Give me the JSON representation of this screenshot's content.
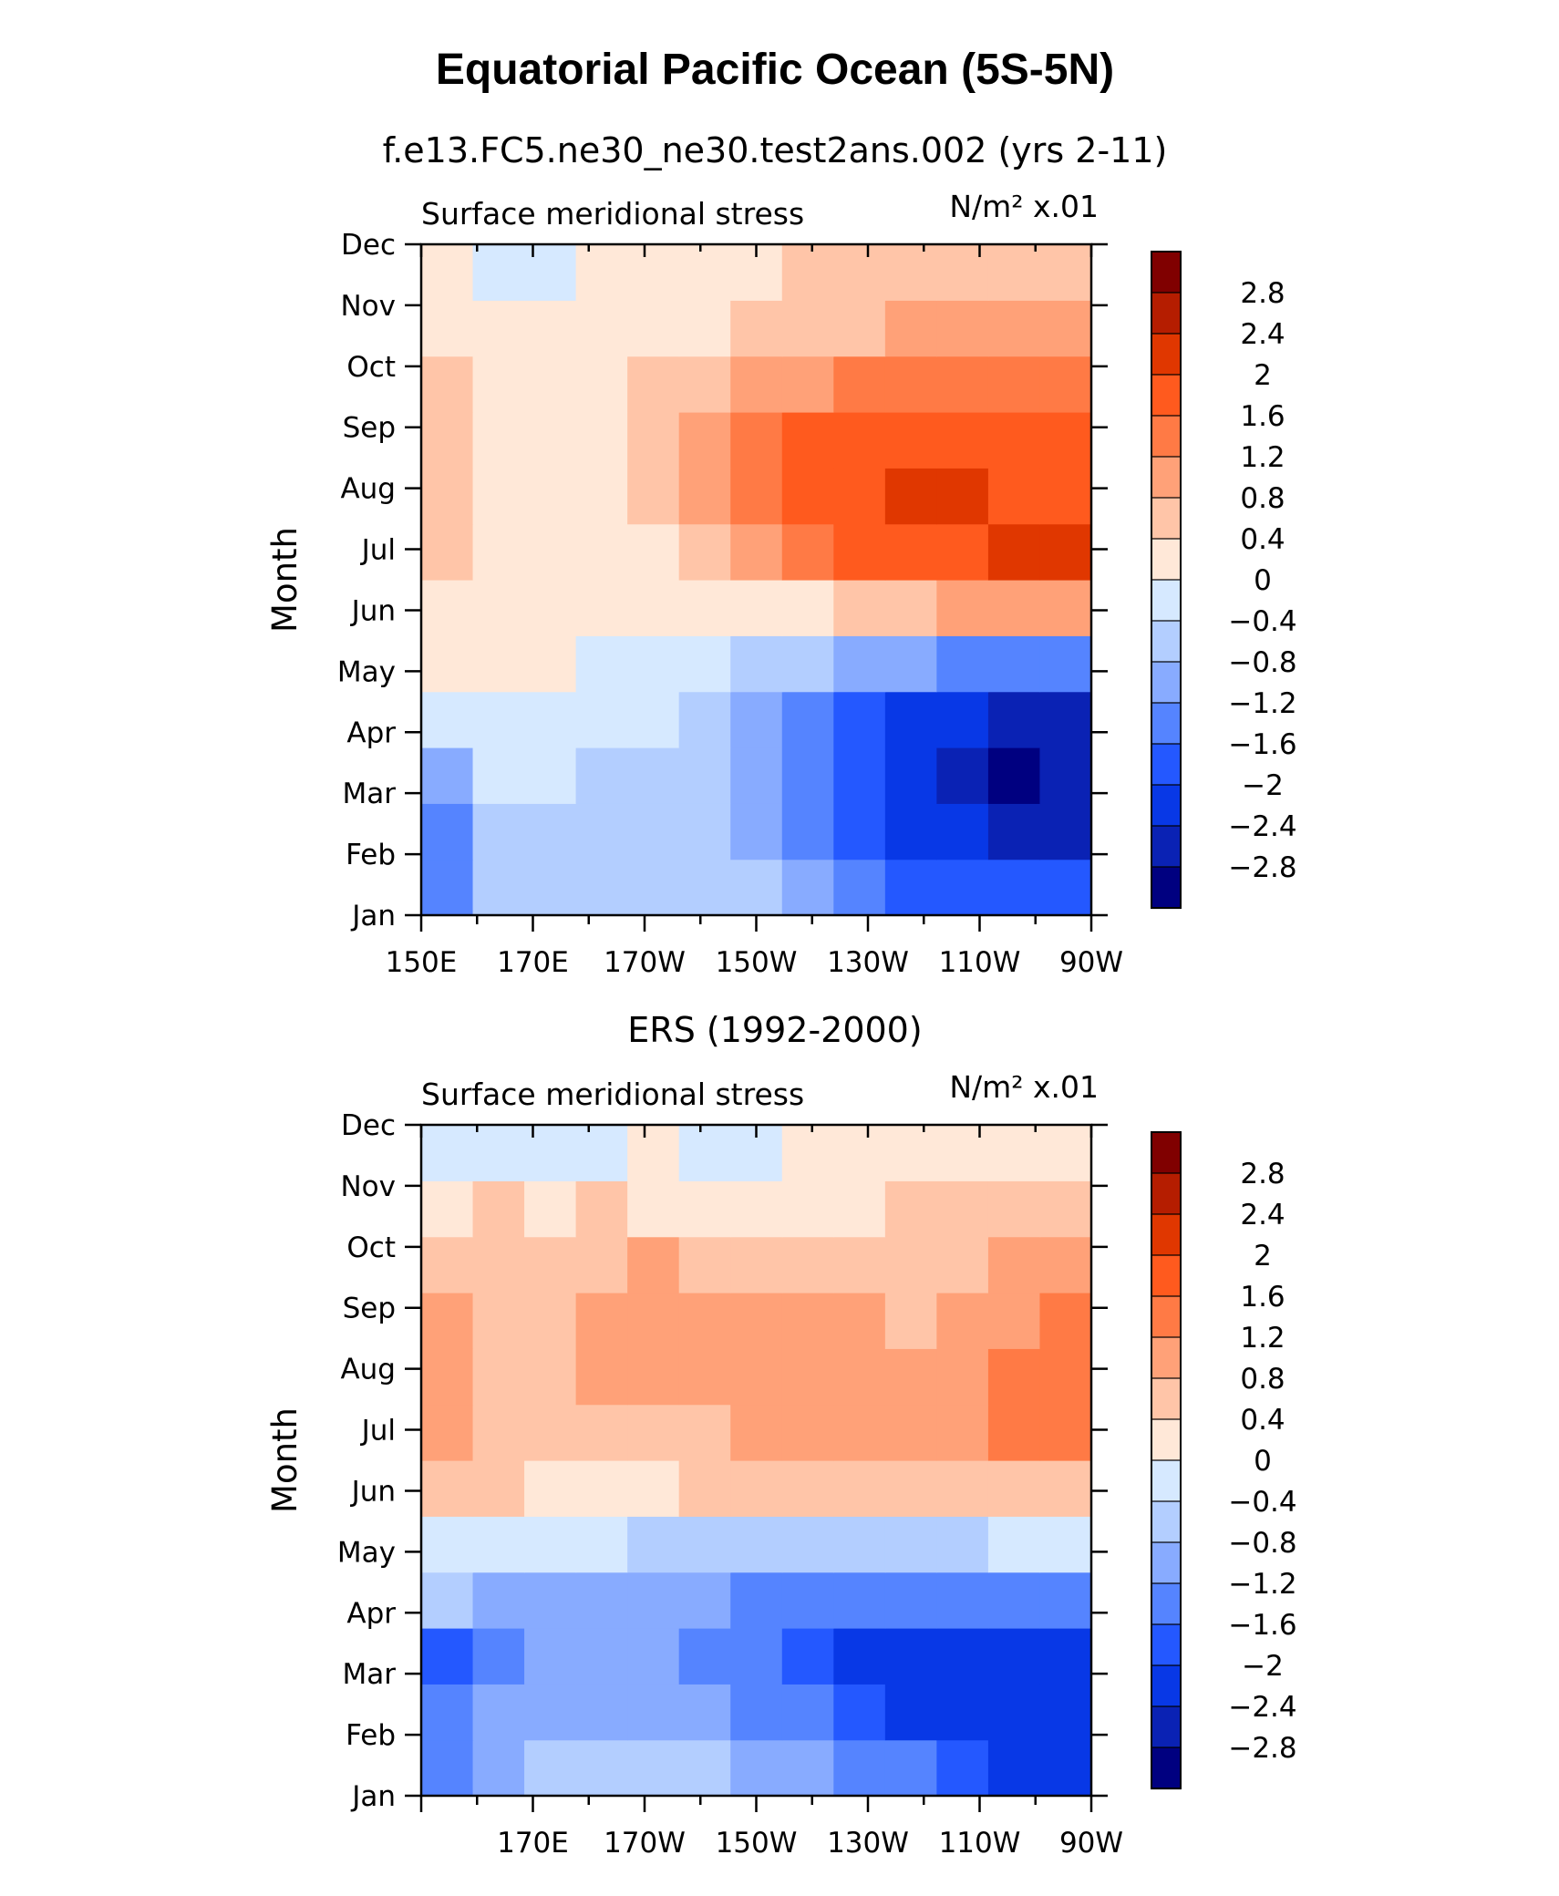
{
  "figure": {
    "title": "Equatorial Pacific Ocean (5S-5N)"
  },
  "chart_data": [
    {
      "type": "heatmap",
      "title": "f.e13.FC5.ne30_ne30.test2ans.002 (yrs 2-11)",
      "subtitle": "Surface meridional stress",
      "units": "N/m² x.01",
      "ylabel": "Month",
      "x_ticks": [
        "150E",
        "170E",
        "170W",
        "150W",
        "130W",
        "110W",
        "90W"
      ],
      "y_ticks": [
        "Jan",
        "Feb",
        "Mar",
        "Apr",
        "May",
        "Jun",
        "Jul",
        "Aug",
        "Sep",
        "Oct",
        "Nov",
        "Dec"
      ],
      "xlim": [
        "150E",
        "90W"
      ],
      "ylim": [
        "Jan",
        "Dec"
      ],
      "colorbar": {
        "levels": [
          2.8,
          2.4,
          2,
          1.6,
          1.2,
          0.8,
          0.4,
          0,
          -0.4,
          -0.8,
          -1.2,
          -1.6,
          -2,
          -2.4,
          -2.8
        ],
        "colors": [
          "#800000",
          "#b51d00",
          "#e03700",
          "#ff5a1e",
          "#ff7a45",
          "#ffa178",
          "#ffc5a8",
          "#ffe8d8",
          "#d6e9ff",
          "#b3ceff",
          "#88abff",
          "#5584ff",
          "#2458ff",
          "#0838e6",
          "#0a22b4",
          "#000080"
        ]
      },
      "months": [
        "Jan",
        "Feb",
        "Mar",
        "Apr",
        "May",
        "Jun",
        "Jul",
        "Aug",
        "Sep",
        "Oct",
        "Nov",
        "Dec"
      ],
      "longitudes": [
        "150E",
        "160E",
        "170E",
        "180",
        "170W",
        "160W",
        "150W",
        "140W",
        "130W",
        "120W",
        "110W",
        "100W",
        "90W"
      ],
      "values": [
        [
          -1.3,
          -0.5,
          -0.5,
          -0.6,
          -0.6,
          -0.6,
          -0.7,
          -1.0,
          -1.4,
          -1.7,
          -1.9,
          -2.0,
          -2.0
        ],
        [
          -1.4,
          -0.6,
          -0.5,
          -0.6,
          -0.6,
          -0.7,
          -0.9,
          -1.3,
          -1.8,
          -2.1,
          -2.4,
          -2.6,
          -2.7
        ],
        [
          -0.9,
          -0.4,
          -0.3,
          -0.5,
          -0.6,
          -0.8,
          -1.1,
          -1.6,
          -2.0,
          -2.4,
          -2.7,
          -2.9,
          -2.8
        ],
        [
          -0.3,
          -0.2,
          -0.2,
          -0.3,
          -0.4,
          -0.6,
          -0.9,
          -1.3,
          -1.7,
          -2.1,
          -2.4,
          -2.6,
          -2.6
        ],
        [
          0.1,
          0.1,
          0.0,
          -0.1,
          -0.2,
          -0.3,
          -0.5,
          -0.7,
          -0.9,
          -1.1,
          -1.3,
          -1.4,
          -1.4
        ],
        [
          0.3,
          0.2,
          0.1,
          0.1,
          0.0,
          0.0,
          0.1,
          0.3,
          0.5,
          0.7,
          0.9,
          1.0,
          1.0
        ],
        [
          0.5,
          0.3,
          0.2,
          0.2,
          0.3,
          0.5,
          0.8,
          1.2,
          1.6,
          1.8,
          1.9,
          2.0,
          2.1
        ],
        [
          0.6,
          0.3,
          0.2,
          0.3,
          0.5,
          0.9,
          1.3,
          1.7,
          1.9,
          2.1,
          2.0,
          1.9,
          1.8
        ],
        [
          0.6,
          0.3,
          0.2,
          0.3,
          0.5,
          0.8,
          1.2,
          1.6,
          1.7,
          1.8,
          1.7,
          1.7,
          1.6
        ],
        [
          0.4,
          0.2,
          0.1,
          0.2,
          0.4,
          0.6,
          0.8,
          1.0,
          1.2,
          1.3,
          1.4,
          1.4,
          1.3
        ],
        [
          0.1,
          0.1,
          0.1,
          0.1,
          0.2,
          0.3,
          0.4,
          0.5,
          0.6,
          0.8,
          0.9,
          1.0,
          1.0
        ],
        [
          0.0,
          -0.1,
          -0.1,
          0.0,
          0.1,
          0.2,
          0.3,
          0.4,
          0.5,
          0.5,
          0.6,
          0.6,
          0.6
        ]
      ]
    },
    {
      "type": "heatmap",
      "title": "ERS (1992-2000)",
      "subtitle": "Surface meridional stress",
      "units": "N/m² x.01",
      "ylabel": "Month",
      "x_ticks": [
        "170E",
        "170W",
        "150W",
        "130W",
        "110W",
        "90W"
      ],
      "y_ticks": [
        "Jan",
        "Feb",
        "Mar",
        "Apr",
        "May",
        "Jun",
        "Jul",
        "Aug",
        "Sep",
        "Oct",
        "Nov",
        "Dec"
      ],
      "xlim": [
        "150E",
        "90W"
      ],
      "ylim": [
        "Jan",
        "Dec"
      ],
      "colorbar": {
        "levels": [
          2.8,
          2.4,
          2,
          1.6,
          1.2,
          0.8,
          0.4,
          0,
          -0.4,
          -0.8,
          -1.2,
          -1.6,
          -2,
          -2.4,
          -2.8
        ],
        "colors": [
          "#800000",
          "#b51d00",
          "#e03700",
          "#ff5a1e",
          "#ff7a45",
          "#ffa178",
          "#ffc5a8",
          "#ffe8d8",
          "#d6e9ff",
          "#b3ceff",
          "#88abff",
          "#5584ff",
          "#2458ff",
          "#0838e6",
          "#0a22b4",
          "#000080"
        ]
      },
      "months": [
        "Jan",
        "Feb",
        "Mar",
        "Apr",
        "May",
        "Jun",
        "Jul",
        "Aug",
        "Sep",
        "Oct",
        "Nov",
        "Dec"
      ],
      "longitudes": [
        "150E",
        "160E",
        "170E",
        "180",
        "170W",
        "160W",
        "150W",
        "140W",
        "130W",
        "120W",
        "110W",
        "100W",
        "90W"
      ],
      "values": [
        [
          -1.3,
          -1.0,
          -0.8,
          -0.7,
          -0.6,
          -0.7,
          -0.9,
          -1.1,
          -1.3,
          -1.6,
          -1.9,
          -2.1,
          -2.1
        ],
        [
          -1.6,
          -1.2,
          -1.0,
          -0.9,
          -1.0,
          -1.1,
          -1.3,
          -1.6,
          -1.8,
          -2.1,
          -2.3,
          -2.4,
          -2.4
        ],
        [
          -1.8,
          -1.4,
          -1.1,
          -1.0,
          -1.1,
          -1.3,
          -1.6,
          -1.9,
          -2.1,
          -2.2,
          -2.3,
          -2.4,
          -2.3
        ],
        [
          -0.8,
          -0.9,
          -0.9,
          -0.9,
          -1.0,
          -1.2,
          -1.4,
          -1.5,
          -1.5,
          -1.5,
          -1.5,
          -1.4,
          -1.4
        ],
        [
          -0.2,
          -0.3,
          -0.3,
          -0.4,
          -0.5,
          -0.5,
          -0.6,
          -0.6,
          -0.6,
          -0.6,
          -0.5,
          -0.4,
          -0.3
        ],
        [
          0.4,
          0.4,
          0.3,
          0.3,
          0.3,
          0.4,
          0.4,
          0.4,
          0.4,
          0.5,
          0.5,
          0.5,
          0.6
        ],
        [
          0.8,
          0.6,
          0.5,
          0.6,
          0.6,
          0.7,
          0.8,
          0.8,
          0.9,
          1.0,
          1.1,
          1.2,
          1.2
        ],
        [
          0.9,
          0.6,
          0.6,
          0.8,
          0.8,
          0.9,
          0.9,
          0.9,
          0.9,
          0.8,
          1.0,
          1.2,
          1.3
        ],
        [
          1.0,
          0.7,
          0.6,
          0.8,
          0.9,
          0.8,
          0.9,
          0.9,
          0.8,
          0.7,
          0.8,
          1.0,
          1.2
        ],
        [
          0.7,
          0.6,
          0.6,
          0.7,
          0.8,
          0.7,
          0.7,
          0.6,
          0.5,
          0.5,
          0.7,
          0.8,
          1.1
        ],
        [
          0.3,
          0.4,
          0.3,
          0.4,
          0.3,
          0.2,
          0.3,
          0.3,
          0.3,
          0.4,
          0.6,
          0.6,
          0.6
        ],
        [
          -0.1,
          -0.2,
          -0.3,
          -0.1,
          0.0,
          -0.1,
          -0.1,
          0.1,
          0.1,
          0.2,
          0.2,
          0.2,
          0.1
        ]
      ]
    }
  ]
}
